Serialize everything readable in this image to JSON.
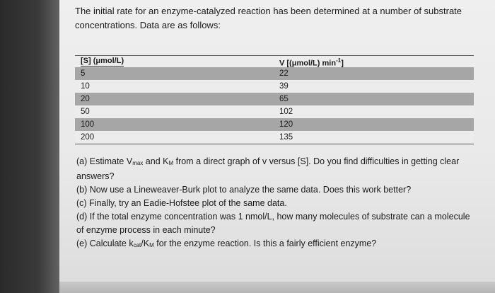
{
  "intro": "The initial rate for an enzyme-catalyzed reaction has been determined at a number of substrate concentrations. Data are as follows:",
  "table": {
    "col_s_header": "[S] (μmol/L)",
    "col_v_header_main": "V [(μmol/L) min",
    "col_v_header_sup": "-1",
    "col_v_header_end": "]",
    "rows": [
      {
        "s": "5",
        "v": "22"
      },
      {
        "s": "10",
        "v": "39"
      },
      {
        "s": "20",
        "v": "65"
      },
      {
        "s": "50",
        "v": "102"
      },
      {
        "s": "100",
        "v": "120"
      },
      {
        "s": "200",
        "v": "135"
      }
    ]
  },
  "questions": {
    "a_pre": "(a) Estimate V",
    "a_sub1": "max",
    "a_mid": " and K",
    "a_sub2": "M",
    "a_post": " from a direct graph of v versus [S]. Do you find difficulties in getting clear answers?",
    "b": "(b) Now use a Lineweaver-Burk plot to analyze the same data. Does this work better?",
    "c": "(c) Finally, try an Eadie-Hofstee plot of the same data.",
    "d": "(d) If the total enzyme concentration was 1 nmol/L, how many molecules of substrate can a molecule of enzyme process in each minute?",
    "e_pre": "(e) Calculate k",
    "e_sub1": "cat",
    "e_mid": "/K",
    "e_sub2": "M",
    "e_post": " for the enzyme reaction. Is this a fairly efficient enzyme?"
  }
}
